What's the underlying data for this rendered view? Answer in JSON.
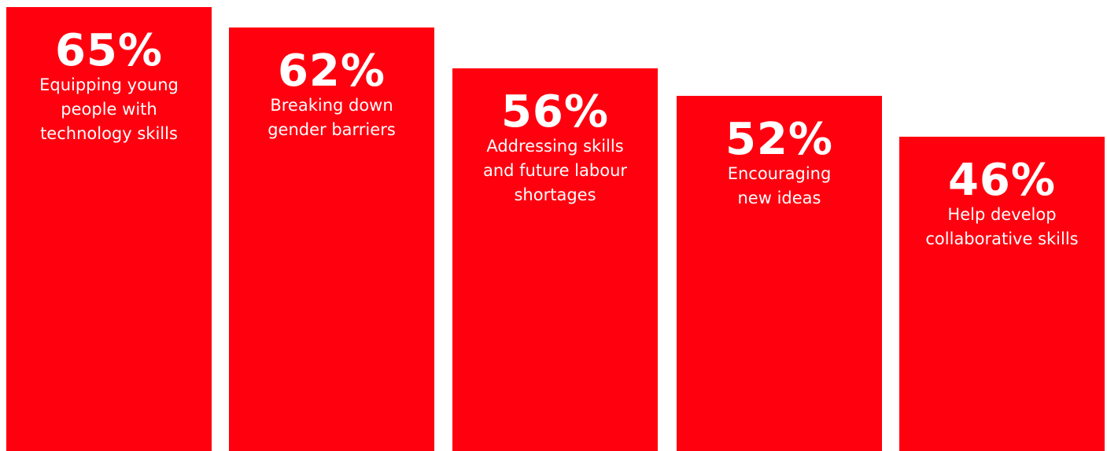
{
  "chart_data": {
    "type": "bar",
    "categories": [
      "Equipping young people with technology skills",
      "Breaking down gender barriers",
      "Addressing skills and future labour shortages",
      "Encouraging new ideas",
      "Help develop collaborative skills"
    ],
    "values": [
      65,
      62,
      56,
      52,
      46
    ],
    "value_labels": [
      "65%",
      "62%",
      "56%",
      "52%",
      "46%"
    ],
    "bar_color": "#ff000f"
  }
}
